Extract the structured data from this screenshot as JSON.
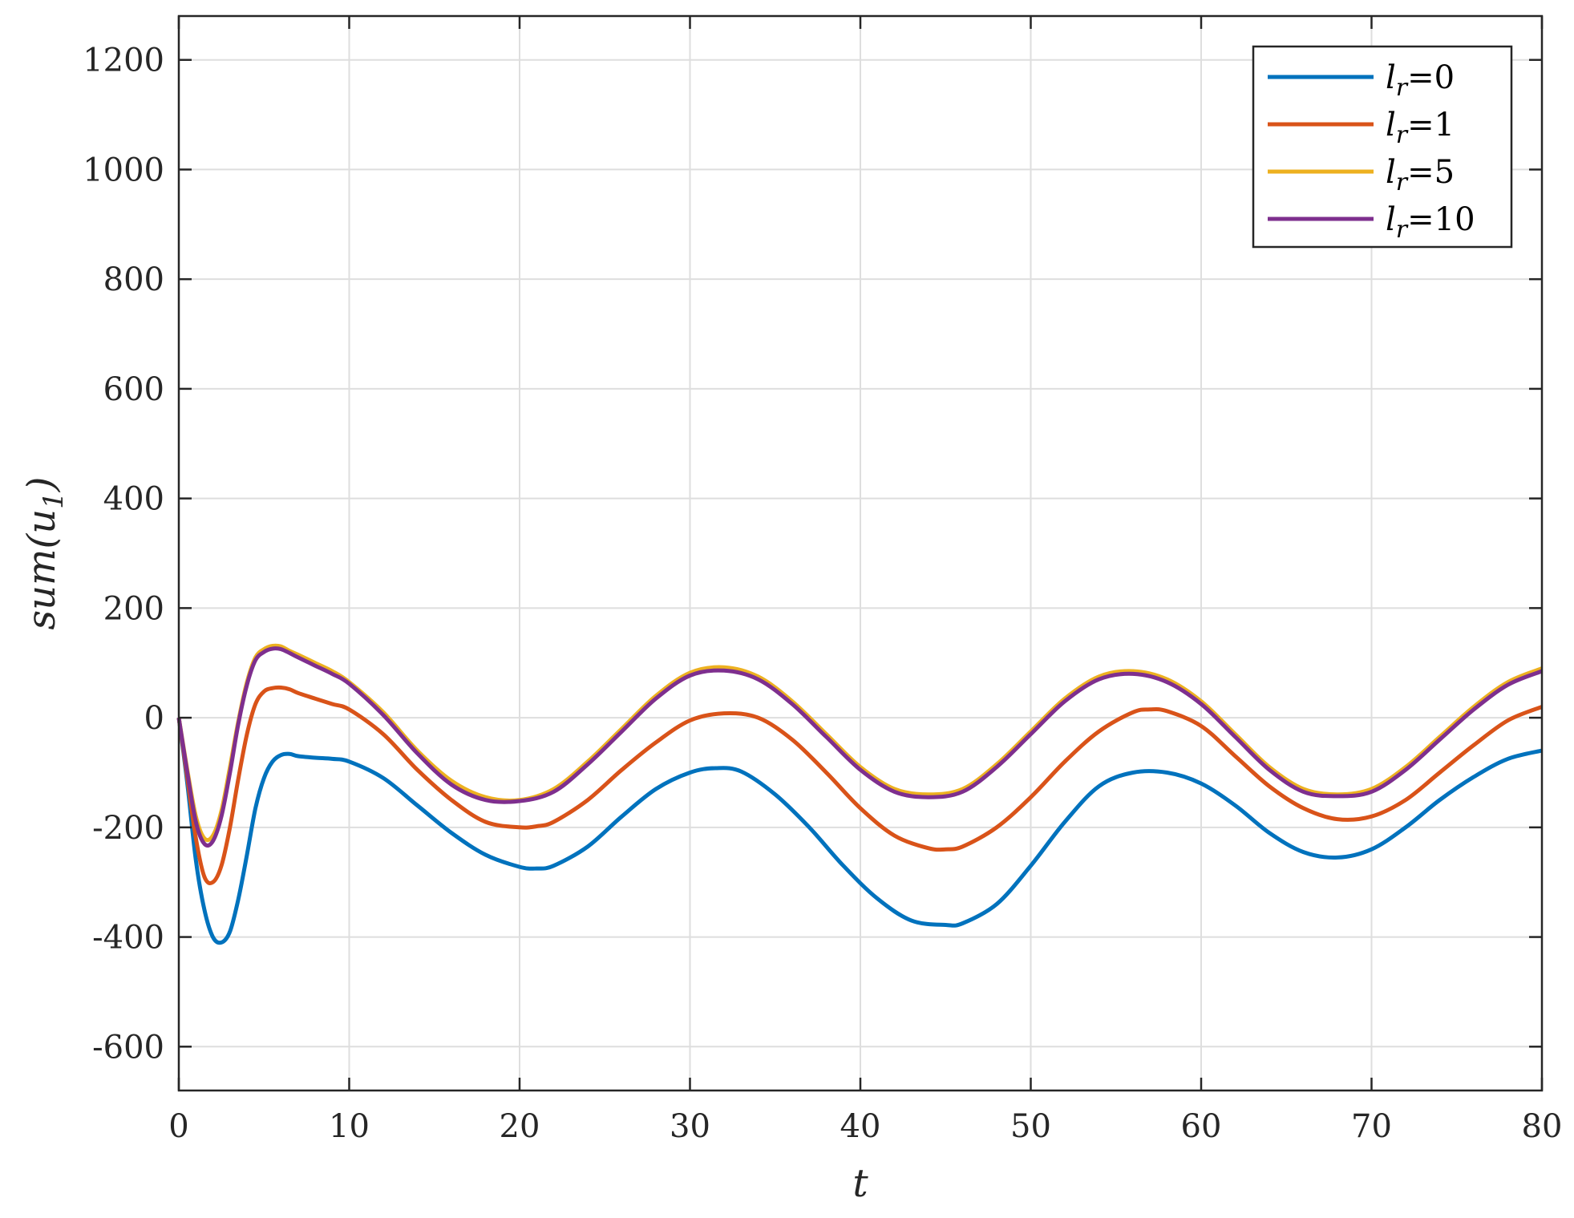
{
  "chart_data": {
    "type": "line",
    "xlabel": "t",
    "ylabel": "sum(u",
    "ylabel_sub": "1",
    "ylabel_close": ")",
    "xlim": [
      0,
      80
    ],
    "ylim": [
      -680,
      1280
    ],
    "xticks": [
      0,
      10,
      20,
      30,
      40,
      50,
      60,
      70,
      80
    ],
    "yticks": [
      -600,
      -400,
      -200,
      0,
      200,
      400,
      600,
      800,
      1000,
      1200
    ],
    "grid": true,
    "legend_position": "top-right",
    "legend_symbol": "l",
    "legend_sub": "r",
    "series": [
      {
        "name": "=0",
        "color": "#0072BD",
        "x": [
          0,
          0.5,
          1,
          1.5,
          2,
          2.5,
          3,
          3.5,
          4,
          4.5,
          5,
          5.5,
          6,
          6.5,
          7,
          8,
          9,
          10,
          12,
          14,
          16,
          18,
          20,
          21,
          22,
          24,
          26,
          28,
          30,
          31.5,
          33,
          35,
          37,
          39,
          41,
          43,
          45,
          46,
          48,
          50,
          52,
          54,
          56,
          58,
          60,
          62,
          64,
          66,
          68,
          70,
          72,
          74,
          76,
          78,
          80
        ],
        "y": [
          0,
          -120,
          -260,
          -350,
          -400,
          -410,
          -390,
          -330,
          -250,
          -165,
          -110,
          -80,
          -68,
          -66,
          -70,
          -73,
          -75,
          -80,
          -110,
          -160,
          -210,
          -250,
          -272,
          -275,
          -270,
          -235,
          -180,
          -130,
          -100,
          -92,
          -98,
          -140,
          -200,
          -270,
          -330,
          -370,
          -378,
          -375,
          -340,
          -270,
          -190,
          -125,
          -100,
          -100,
          -120,
          -160,
          -210,
          -245,
          -255,
          -240,
          -200,
          -150,
          -108,
          -75,
          -60
        ]
      },
      {
        "name": "=1",
        "color": "#D95319",
        "x": [
          0,
          0.5,
          1,
          1.5,
          2,
          2.5,
          3,
          3.5,
          4,
          4.5,
          5,
          5.5,
          6,
          6.5,
          7,
          8,
          9,
          10,
          12,
          14,
          16,
          18,
          20,
          21,
          22,
          24,
          26,
          28,
          30,
          32,
          34,
          36,
          38,
          40,
          42,
          44,
          45,
          46,
          48,
          50,
          52,
          54,
          56,
          57,
          58,
          60,
          62,
          64,
          66,
          68,
          70,
          72,
          74,
          76,
          78,
          80
        ],
        "y": [
          0,
          -110,
          -220,
          -290,
          -300,
          -270,
          -200,
          -110,
          -30,
          25,
          48,
          54,
          55,
          52,
          45,
          35,
          25,
          15,
          -30,
          -95,
          -150,
          -190,
          -200,
          -198,
          -190,
          -150,
          -95,
          -45,
          -5,
          8,
          0,
          -40,
          -100,
          -165,
          -215,
          -238,
          -240,
          -235,
          -200,
          -145,
          -80,
          -25,
          10,
          15,
          12,
          -15,
          -70,
          -125,
          -165,
          -185,
          -180,
          -150,
          -100,
          -50,
          -5,
          20
        ]
      },
      {
        "name": "=5",
        "color": "#EDB120",
        "x": [
          0,
          0.5,
          1,
          1.5,
          2,
          2.5,
          3,
          3.5,
          4,
          4.5,
          5,
          5.5,
          6,
          6.5,
          7,
          8,
          9,
          10,
          12,
          14,
          16,
          18,
          20,
          22,
          24,
          26,
          28,
          30,
          32,
          34,
          36,
          38,
          40,
          42,
          44,
          46,
          48,
          50,
          52,
          54,
          56,
          58,
          60,
          62,
          64,
          66,
          68,
          70,
          72,
          74,
          76,
          78,
          80
        ],
        "y": [
          0,
          -95,
          -180,
          -220,
          -215,
          -170,
          -90,
          -5,
          65,
          110,
          125,
          131,
          130,
          122,
          115,
          100,
          85,
          65,
          10,
          -60,
          -115,
          -145,
          -150,
          -130,
          -80,
          -20,
          40,
          82,
          92,
          75,
          30,
          -30,
          -90,
          -130,
          -140,
          -130,
          -85,
          -25,
          35,
          75,
          85,
          70,
          30,
          -30,
          -90,
          -130,
          -140,
          -130,
          -90,
          -35,
          20,
          65,
          90
        ]
      },
      {
        "name": "=10",
        "color": "#7E2F8E",
        "x": [
          0,
          0.5,
          1,
          1.5,
          2,
          2.5,
          3,
          3.5,
          4,
          4.5,
          5,
          5.5,
          6,
          6.5,
          7,
          8,
          9,
          10,
          12,
          14,
          16,
          18,
          20,
          22,
          24,
          26,
          28,
          30,
          32,
          34,
          36,
          38,
          40,
          42,
          44,
          46,
          48,
          50,
          52,
          54,
          56,
          58,
          60,
          62,
          64,
          66,
          68,
          70,
          72,
          74,
          76,
          78,
          80
        ],
        "y": [
          0,
          -100,
          -190,
          -230,
          -225,
          -180,
          -100,
          -10,
          60,
          105,
          120,
          126,
          125,
          118,
          110,
          95,
          80,
          62,
          5,
          -65,
          -122,
          -150,
          -152,
          -135,
          -85,
          -25,
          35,
          77,
          86,
          70,
          25,
          -35,
          -95,
          -135,
          -145,
          -135,
          -90,
          -30,
          30,
          70,
          80,
          65,
          25,
          -35,
          -95,
          -135,
          -143,
          -135,
          -95,
          -40,
          15,
          60,
          85
        ]
      }
    ]
  }
}
